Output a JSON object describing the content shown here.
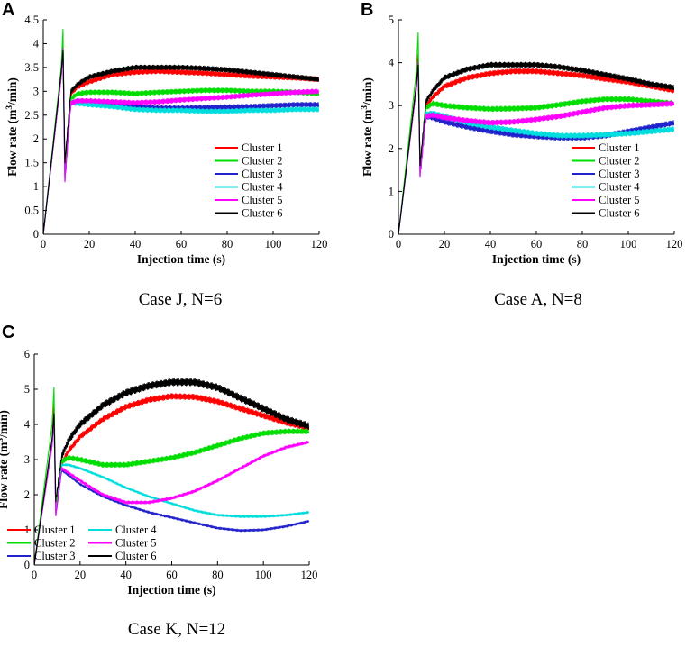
{
  "figure": {
    "panels": [
      {
        "letter": "A",
        "caption": "Case J, N=6"
      },
      {
        "letter": "B",
        "caption": "Case A, N=8"
      },
      {
        "letter": "C",
        "caption": "Case K, N=12"
      }
    ]
  },
  "chart_data": [
    {
      "type": "line",
      "panel": "A",
      "title": "",
      "xlabel": "Injection time (s)",
      "ylabel": "Flow rate (m3/min)",
      "xlim": [
        0,
        120
      ],
      "ylim": [
        0,
        4.5
      ],
      "xticks": [
        0,
        20,
        40,
        60,
        80,
        100,
        120
      ],
      "yticks": [
        0,
        0.5,
        1,
        1.5,
        2,
        2.5,
        3,
        3.5,
        4,
        4.5
      ],
      "ytick_labels": [
        "0",
        "0.5",
        "1",
        "1.5",
        "2",
        "2.5",
        "3",
        "3.5",
        "4",
        "4.5"
      ],
      "legend": "bottom-right",
      "series": [
        {
          "name": "Cluster 1",
          "color": "#ff0000",
          "noise": 0.05,
          "x": [
            0,
            7.8,
            8.6,
            9.4,
            12,
            15,
            20,
            30,
            40,
            50,
            60,
            70,
            80,
            90,
            100,
            110,
            120
          ],
          "values": [
            0,
            3.3,
            4.0,
            1.25,
            2.95,
            3.1,
            3.2,
            3.35,
            3.4,
            3.42,
            3.4,
            3.38,
            3.35,
            3.32,
            3.3,
            3.28,
            3.25
          ]
        },
        {
          "name": "Cluster 2",
          "color": "#00dd00",
          "noise": 0.05,
          "x": [
            0,
            7.8,
            8.6,
            9.4,
            12,
            15,
            20,
            30,
            40,
            50,
            60,
            70,
            80,
            90,
            100,
            110,
            120
          ],
          "values": [
            0,
            3.5,
            4.3,
            1.2,
            2.85,
            2.95,
            2.98,
            2.98,
            2.95,
            2.98,
            3.0,
            3.02,
            3.02,
            3.0,
            3.0,
            2.98,
            2.95
          ]
        },
        {
          "name": "Cluster 3",
          "color": "#2222cc",
          "noise": 0.05,
          "x": [
            0,
            7.8,
            8.6,
            9.4,
            12,
            15,
            20,
            30,
            40,
            50,
            60,
            70,
            80,
            90,
            100,
            110,
            120
          ],
          "values": [
            0,
            3.3,
            3.9,
            1.15,
            2.75,
            2.8,
            2.75,
            2.7,
            2.68,
            2.65,
            2.65,
            2.66,
            2.67,
            2.68,
            2.7,
            2.72,
            2.72
          ]
        },
        {
          "name": "Cluster 4",
          "color": "#00dddd",
          "noise": 0.05,
          "x": [
            0,
            7.8,
            8.6,
            9.4,
            12,
            15,
            20,
            30,
            40,
            50,
            60,
            70,
            80,
            90,
            100,
            110,
            120
          ],
          "values": [
            0,
            3.3,
            3.9,
            1.1,
            2.75,
            2.75,
            2.72,
            2.68,
            2.62,
            2.6,
            2.6,
            2.58,
            2.58,
            2.6,
            2.6,
            2.62,
            2.62
          ]
        },
        {
          "name": "Cluster 5",
          "color": "#ff00ff",
          "noise": 0.05,
          "x": [
            0,
            7.8,
            8.6,
            9.4,
            12,
            15,
            20,
            30,
            40,
            50,
            60,
            70,
            80,
            90,
            100,
            110,
            120
          ],
          "values": [
            0,
            3.3,
            3.9,
            1.1,
            2.75,
            2.8,
            2.8,
            2.78,
            2.76,
            2.78,
            2.82,
            2.85,
            2.88,
            2.92,
            2.95,
            2.98,
            3.0
          ]
        },
        {
          "name": "Cluster 6",
          "color": "#000000",
          "noise": 0.05,
          "x": [
            0,
            7.8,
            8.6,
            9.4,
            12,
            15,
            20,
            30,
            40,
            50,
            60,
            70,
            80,
            90,
            100,
            110,
            120
          ],
          "values": [
            0,
            3.4,
            3.85,
            1.5,
            3.0,
            3.15,
            3.3,
            3.42,
            3.5,
            3.5,
            3.5,
            3.48,
            3.45,
            3.4,
            3.35,
            3.3,
            3.25
          ]
        }
      ]
    },
    {
      "type": "line",
      "panel": "B",
      "title": "",
      "xlabel": "Injection time (s)",
      "ylabel": "Flow rate (m3/min)",
      "xlim": [
        0,
        120
      ],
      "ylim": [
        0,
        5
      ],
      "xticks": [
        0,
        20,
        40,
        60,
        80,
        100,
        120
      ],
      "yticks": [
        0,
        1,
        2,
        3,
        4,
        5
      ],
      "ytick_labels": [
        "0",
        "1",
        "2",
        "3",
        "4",
        "5"
      ],
      "legend": "bottom-right",
      "series": [
        {
          "name": "Cluster 1",
          "color": "#ff0000",
          "noise": 0.06,
          "x": [
            0,
            7.8,
            8.6,
            9.4,
            12,
            15,
            20,
            30,
            40,
            50,
            60,
            70,
            80,
            90,
            100,
            110,
            120
          ],
          "values": [
            0,
            3.5,
            4.2,
            1.5,
            3.0,
            3.2,
            3.45,
            3.65,
            3.75,
            3.8,
            3.8,
            3.75,
            3.7,
            3.62,
            3.55,
            3.45,
            3.35
          ]
        },
        {
          "name": "Cluster 2",
          "color": "#00dd00",
          "noise": 0.06,
          "x": [
            0,
            7.8,
            8.6,
            9.4,
            12,
            15,
            20,
            30,
            40,
            50,
            60,
            70,
            80,
            90,
            100,
            110,
            120
          ],
          "values": [
            0,
            3.8,
            4.7,
            1.45,
            2.95,
            3.05,
            3.0,
            2.95,
            2.92,
            2.93,
            2.95,
            3.02,
            3.1,
            3.15,
            3.15,
            3.1,
            3.05
          ]
        },
        {
          "name": "Cluster 3",
          "color": "#2222cc",
          "noise": 0.06,
          "x": [
            0,
            7.8,
            8.6,
            9.4,
            12,
            15,
            20,
            30,
            40,
            50,
            60,
            70,
            80,
            90,
            100,
            110,
            120
          ],
          "values": [
            0,
            3.4,
            4.0,
            1.35,
            2.75,
            2.72,
            2.62,
            2.5,
            2.4,
            2.32,
            2.28,
            2.25,
            2.25,
            2.3,
            2.4,
            2.5,
            2.6
          ]
        },
        {
          "name": "Cluster 4",
          "color": "#00dddd",
          "noise": 0.06,
          "x": [
            0,
            7.8,
            8.6,
            9.4,
            12,
            15,
            20,
            30,
            40,
            50,
            60,
            70,
            80,
            90,
            100,
            110,
            120
          ],
          "values": [
            0,
            3.4,
            4.0,
            1.35,
            2.8,
            2.82,
            2.75,
            2.6,
            2.5,
            2.42,
            2.35,
            2.3,
            2.3,
            2.32,
            2.35,
            2.4,
            2.45
          ]
        },
        {
          "name": "Cluster 5",
          "color": "#ff00ff",
          "noise": 0.06,
          "x": [
            0,
            7.8,
            8.6,
            9.4,
            12,
            15,
            20,
            30,
            40,
            50,
            60,
            70,
            80,
            90,
            100,
            110,
            120
          ],
          "values": [
            0,
            3.4,
            4.0,
            1.35,
            2.75,
            2.78,
            2.72,
            2.65,
            2.6,
            2.62,
            2.68,
            2.75,
            2.85,
            2.95,
            3.0,
            3.02,
            3.05
          ]
        },
        {
          "name": "Cluster 6",
          "color": "#000000",
          "noise": 0.06,
          "x": [
            0,
            7.8,
            8.6,
            9.4,
            12,
            15,
            20,
            30,
            40,
            50,
            60,
            70,
            80,
            90,
            100,
            110,
            120
          ],
          "values": [
            0,
            3.5,
            3.95,
            1.6,
            3.1,
            3.35,
            3.65,
            3.85,
            3.95,
            3.95,
            3.95,
            3.9,
            3.82,
            3.72,
            3.62,
            3.5,
            3.42
          ]
        }
      ]
    },
    {
      "type": "line",
      "panel": "C",
      "title": "",
      "xlabel": "Injection time (s)",
      "ylabel": "Flow rate (m3/min)",
      "xlim": [
        0,
        120
      ],
      "ylim": [
        0,
        6
      ],
      "xticks": [
        0,
        20,
        40,
        60,
        80,
        100,
        120
      ],
      "yticks": [
        0,
        1,
        2,
        3,
        4,
        5,
        6
      ],
      "ytick_labels": [
        "0",
        "1",
        "2",
        "3",
        "4",
        "5",
        "6"
      ],
      "legend": "bottom-left",
      "series": [
        {
          "name": "Cluster 1",
          "color": "#ff0000",
          "noise": 0.08,
          "x": [
            0,
            7.8,
            8.6,
            9.4,
            12,
            15,
            20,
            30,
            40,
            50,
            60,
            70,
            80,
            90,
            100,
            110,
            120
          ],
          "values": [
            0,
            3.5,
            4.6,
            1.5,
            2.9,
            3.25,
            3.65,
            4.15,
            4.5,
            4.7,
            4.8,
            4.78,
            4.65,
            4.45,
            4.25,
            4.05,
            3.9
          ]
        },
        {
          "name": "Cluster 2",
          "color": "#00dd00",
          "noise": 0.07,
          "x": [
            0,
            7.8,
            8.6,
            9.4,
            12,
            15,
            20,
            30,
            40,
            50,
            60,
            70,
            80,
            90,
            100,
            110,
            120
          ],
          "values": [
            0,
            4.0,
            5.05,
            1.5,
            2.95,
            3.05,
            3.0,
            2.85,
            2.85,
            2.95,
            3.05,
            3.2,
            3.4,
            3.6,
            3.75,
            3.8,
            3.8
          ]
        },
        {
          "name": "Cluster 3",
          "color": "#2222cc",
          "noise": 0.03,
          "x": [
            0,
            7.8,
            8.6,
            9.4,
            12,
            15,
            20,
            30,
            40,
            50,
            60,
            70,
            80,
            90,
            100,
            110,
            120
          ],
          "values": [
            0,
            3.4,
            4.2,
            1.4,
            2.7,
            2.55,
            2.3,
            1.95,
            1.7,
            1.5,
            1.35,
            1.2,
            1.05,
            0.98,
            1.0,
            1.1,
            1.25
          ]
        },
        {
          "name": "Cluster 4",
          "color": "#00dddd",
          "noise": 0.03,
          "x": [
            0,
            7.8,
            8.6,
            9.4,
            12,
            15,
            20,
            30,
            40,
            50,
            60,
            70,
            80,
            90,
            100,
            110,
            120
          ],
          "values": [
            0,
            3.4,
            4.2,
            1.4,
            2.85,
            2.85,
            2.75,
            2.5,
            2.2,
            1.95,
            1.75,
            1.55,
            1.42,
            1.38,
            1.38,
            1.42,
            1.5
          ]
        },
        {
          "name": "Cluster 5",
          "color": "#ff00ff",
          "noise": 0.04,
          "x": [
            0,
            7.8,
            8.6,
            9.4,
            12,
            15,
            20,
            30,
            40,
            50,
            60,
            70,
            80,
            90,
            100,
            110,
            120
          ],
          "values": [
            0,
            3.4,
            4.2,
            1.4,
            2.75,
            2.62,
            2.4,
            2.0,
            1.78,
            1.78,
            1.9,
            2.1,
            2.4,
            2.75,
            3.1,
            3.35,
            3.5
          ]
        },
        {
          "name": "Cluster 6",
          "color": "#000000",
          "noise": 0.1,
          "x": [
            0,
            7.8,
            8.6,
            9.4,
            12,
            15,
            20,
            30,
            40,
            50,
            60,
            70,
            80,
            90,
            100,
            110,
            120
          ],
          "values": [
            0,
            3.6,
            4.3,
            1.8,
            3.1,
            3.55,
            4.0,
            4.55,
            4.9,
            5.1,
            5.2,
            5.2,
            5.05,
            4.75,
            4.45,
            4.15,
            3.95
          ]
        }
      ]
    }
  ]
}
